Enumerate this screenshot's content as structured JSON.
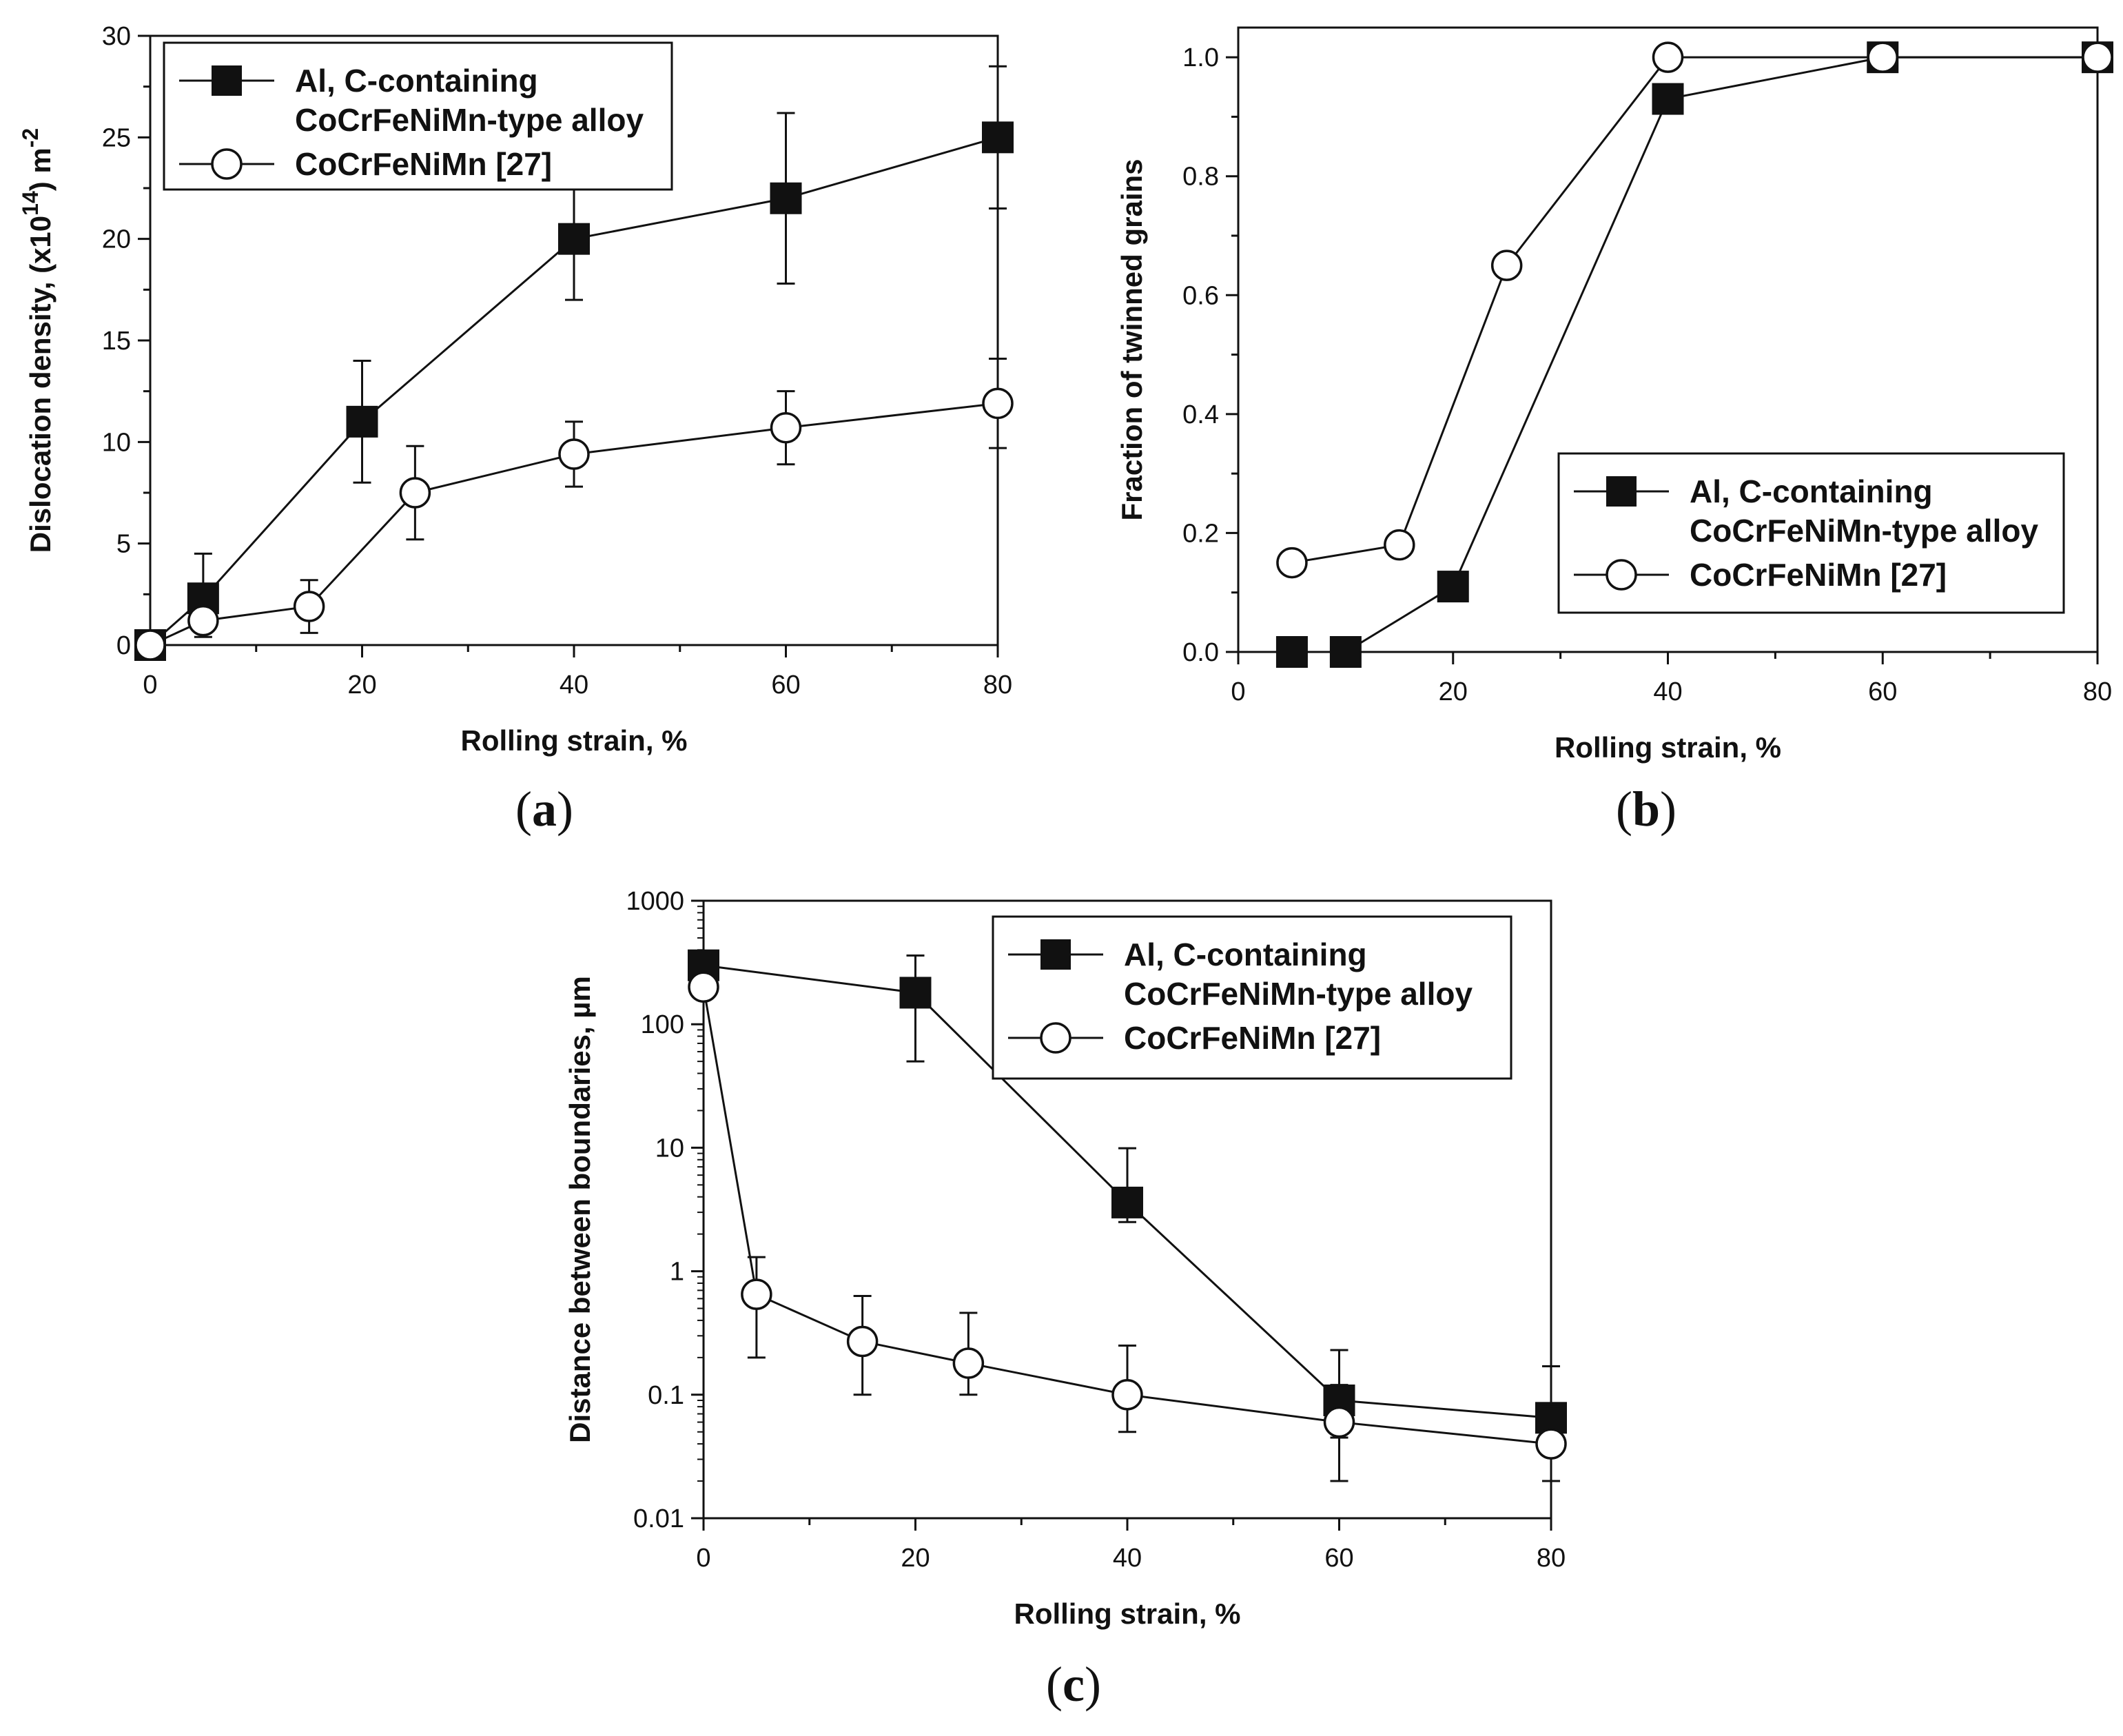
{
  "chart_data": [
    {
      "type": "line",
      "panel": "a",
      "panel_label": "a",
      "xlabel": "Rolling strain, %",
      "ylabel_main": "Dislocation density, (x10",
      "ylabel_sup1": "14",
      "ylabel_mid": ") m",
      "ylabel_sup2": "-2",
      "ylabel": "Dislocation density, (x10^14) m^-2",
      "xlim": [
        0,
        80
      ],
      "ylim": [
        0,
        30
      ],
      "xticks": [
        0,
        20,
        40,
        60,
        80
      ],
      "xtick_labels": [
        "0",
        "20",
        "40",
        "60",
        "80"
      ],
      "yticks": [
        0,
        5,
        10,
        15,
        20,
        25,
        30
      ],
      "ytick_labels": [
        "0",
        "5",
        "10",
        "15",
        "20",
        "25",
        "30"
      ],
      "legend_placement": "top-left",
      "series": [
        {
          "name": "Al, C-containing CoCrFeNiMn-type alloy",
          "legend_lines": [
            "Al, C-containing",
            "CoCrFeNiMn-type alloy"
          ],
          "marker": "filled-square",
          "x": [
            0,
            5,
            20,
            40,
            60,
            80
          ],
          "y": [
            0,
            2.3,
            11,
            20,
            22,
            25
          ],
          "err_low": [
            0,
            1.9,
            3,
            3,
            4.2,
            3.5
          ],
          "err_high": [
            0,
            2.2,
            3,
            2.5,
            4.2,
            3.5
          ]
        },
        {
          "name": "CoCrFeNiMn [27]",
          "legend_lines": [
            "CoCrFeNiMn [27]"
          ],
          "marker": "open-circle",
          "x": [
            0,
            5,
            15,
            25,
            40,
            60,
            80
          ],
          "y": [
            0,
            1.2,
            1.9,
            7.5,
            9.4,
            10.7,
            11.9
          ],
          "err_low": [
            0,
            0,
            1.3,
            2.3,
            1.6,
            1.8,
            2.2
          ],
          "err_high": [
            0,
            0,
            1.3,
            2.3,
            1.6,
            1.8,
            2.2
          ]
        }
      ]
    },
    {
      "type": "line",
      "panel": "b",
      "panel_label": "b",
      "xlabel": "Rolling strain, %",
      "ylabel": "Fraction of twinned grains",
      "xlim": [
        0,
        80
      ],
      "ylim": [
        0,
        1.05
      ],
      "xticks": [
        0,
        20,
        40,
        60,
        80
      ],
      "xtick_labels": [
        "0",
        "20",
        "40",
        "60",
        "80"
      ],
      "yticks": [
        0,
        0.2,
        0.4,
        0.6,
        0.8,
        1.0
      ],
      "ytick_labels": [
        "0.0",
        "0.2",
        "0.4",
        "0.6",
        "0.8",
        "1.0"
      ],
      "legend_placement": "bottom-right",
      "series": [
        {
          "name": "Al, C-containing CoCrFeNiMn-type alloy",
          "legend_lines": [
            "Al, C-containing",
            "CoCrFeNiMn-type alloy"
          ],
          "marker": "filled-square",
          "x": [
            5,
            10,
            20,
            40,
            60,
            80
          ],
          "y": [
            0,
            0,
            0.11,
            0.93,
            1.0,
            1.0
          ]
        },
        {
          "name": "CoCrFeNiMn [27]",
          "legend_lines": [
            "CoCrFeNiMn [27]"
          ],
          "marker": "open-circle",
          "x": [
            5,
            15,
            25,
            40,
            60,
            80
          ],
          "y": [
            0.15,
            0.18,
            0.65,
            1.0,
            1.0,
            1.0
          ]
        }
      ]
    },
    {
      "type": "line",
      "panel": "c",
      "panel_label": "c",
      "xlabel": "Rolling strain, %",
      "ylabel": "Distance between boundaries, µm",
      "yscale": "log",
      "xlim": [
        0,
        80
      ],
      "ylim": [
        0.01,
        1000
      ],
      "xticks": [
        0,
        20,
        40,
        60,
        80
      ],
      "xtick_labels": [
        "0",
        "20",
        "40",
        "60",
        "80"
      ],
      "yticks": [
        0.01,
        0.1,
        1,
        10,
        100,
        1000
      ],
      "ytick_labels": [
        "0.01",
        "0.1",
        "1",
        "10",
        "100",
        "1000"
      ],
      "legend_placement": "top-right",
      "series": [
        {
          "name": "Al, C-containing CoCrFeNiMn-type alloy",
          "legend_lines": [
            "Al, C-containing",
            "CoCrFeNiMn-type alloy"
          ],
          "marker": "filled-square",
          "x": [
            0,
            20,
            40,
            60,
            80
          ],
          "y": [
            300,
            180,
            3.6,
            0.09,
            0.065
          ],
          "err_low": [
            null,
            130,
            1.1,
            0.045,
            0.028
          ],
          "err_high": [
            null,
            180,
            6.3,
            0.14,
            0.105
          ]
        },
        {
          "name": "CoCrFeNiMn [27]",
          "legend_lines": [
            "CoCrFeNiMn [27]"
          ],
          "marker": "open-circle",
          "x": [
            0,
            5,
            15,
            25,
            40,
            60,
            80
          ],
          "y": [
            200,
            0.65,
            0.27,
            0.18,
            0.1,
            0.06,
            0.04
          ],
          "err_low": [
            null,
            0.45,
            0.17,
            0.08,
            0.05,
            0.04,
            0.02
          ],
          "err_high": [
            null,
            0.65,
            0.36,
            0.28,
            0.15,
            0.06,
            0.04
          ]
        }
      ]
    }
  ]
}
